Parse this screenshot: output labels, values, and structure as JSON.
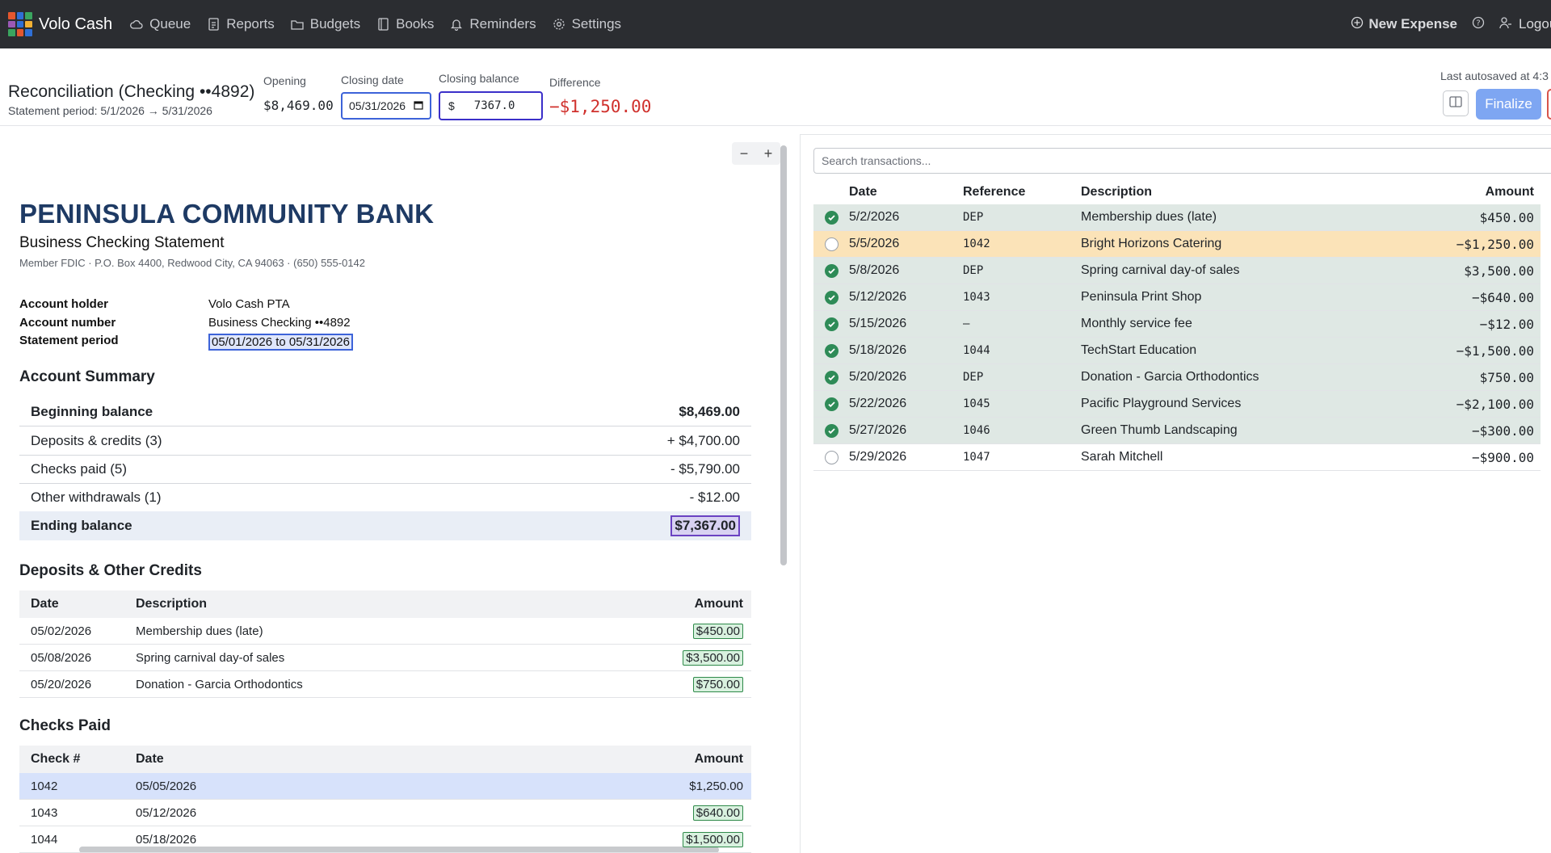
{
  "nav": {
    "brand": "Volo Cash",
    "brand_colors": [
      "#e4572e",
      "#2f6fd6",
      "#3aa55f",
      "#9b59b6",
      "#f2b134"
    ],
    "links": [
      {
        "label": "Queue",
        "icon": "cloud-icon"
      },
      {
        "label": "Reports",
        "icon": "report-icon"
      },
      {
        "label": "Budgets",
        "icon": "folder-icon"
      },
      {
        "label": "Books",
        "icon": "book-icon"
      },
      {
        "label": "Reminders",
        "icon": "bell-icon"
      },
      {
        "label": "Settings",
        "icon": "gear-icon"
      }
    ],
    "new_expense": "New Expense",
    "logout": "Logou"
  },
  "header": {
    "title": "Reconciliation (Checking ••4892)",
    "period": "Statement period: 5/1/2026 → 5/31/2026",
    "opening_label": "Opening",
    "opening_value": "$8,469.00",
    "closing_date_label": "Closing date",
    "closing_date_value": "05/31/2026",
    "closing_balance_label": "Closing balance",
    "closing_balance_currency": "$",
    "closing_balance_value": "7367.0",
    "difference_label": "Difference",
    "difference_value": "−$1,250.00",
    "autosave": "Last autosaved at 4:3",
    "finalize": "Finalize"
  },
  "statement": {
    "bank_name": "PENINSULA COMMUNITY BANK",
    "subtitle": "Business Checking Statement",
    "address": "Member FDIC  ·  P.O. Box 4400, Redwood City, CA 94063  ·  (650) 555-0142",
    "info": [
      {
        "k": "Account holder",
        "v": "Volo Cash PTA"
      },
      {
        "k": "Account number",
        "v": "Business Checking ••4892"
      },
      {
        "k": "Statement period",
        "v": "05/01/2026  to  05/31/2026"
      }
    ],
    "summary_title": "Account Summary",
    "summary": [
      {
        "label": "Beginning balance",
        "value": "$8,469.00"
      },
      {
        "label": "Deposits & credits (3)",
        "value": "+ $4,700.00"
      },
      {
        "label": "Checks paid (5)",
        "value": "- $5,790.00"
      },
      {
        "label": "Other withdrawals (1)",
        "value": "- $12.00"
      },
      {
        "label": "Ending balance",
        "value": "$7,367.00"
      }
    ],
    "deposits_title": "Deposits & Other Credits",
    "deposits_cols": [
      "Date",
      "Description",
      "Amount"
    ],
    "deposits": [
      {
        "date": "05/02/2026",
        "desc": "Membership dues (late)",
        "amount": "$450.00"
      },
      {
        "date": "05/08/2026",
        "desc": "Spring carnival day-of sales",
        "amount": "$3,500.00"
      },
      {
        "date": "05/20/2026",
        "desc": "Donation - Garcia Orthodontics",
        "amount": "$750.00"
      }
    ],
    "checks_title": "Checks Paid",
    "checks_cols": [
      "Check #",
      "Date",
      "Amount"
    ],
    "checks": [
      {
        "num": "1042",
        "date": "05/05/2026",
        "amount": "$1,250.00"
      },
      {
        "num": "1043",
        "date": "05/12/2026",
        "amount": "$640.00"
      },
      {
        "num": "1044",
        "date": "05/18/2026",
        "amount": "$1,500.00"
      }
    ]
  },
  "txns": {
    "search_placeholder": "Search transactions...",
    "cols": [
      "Date",
      "Reference",
      "Description",
      "Amount"
    ],
    "rows": [
      {
        "date": "5/2/2026",
        "ref": "DEP",
        "desc": "Membership dues (late)",
        "amount": "$450.00",
        "matched": true
      },
      {
        "date": "5/5/2026",
        "ref": "1042",
        "desc": "Bright Horizons Catering",
        "amount": "−$1,250.00",
        "matched": false,
        "active": true
      },
      {
        "date": "5/8/2026",
        "ref": "DEP",
        "desc": "Spring carnival day-of sales",
        "amount": "$3,500.00",
        "matched": true
      },
      {
        "date": "5/12/2026",
        "ref": "1043",
        "desc": "Peninsula Print Shop",
        "amount": "−$640.00",
        "matched": true
      },
      {
        "date": "5/15/2026",
        "ref": "—",
        "desc": "Monthly service fee",
        "amount": "−$12.00",
        "matched": true
      },
      {
        "date": "5/18/2026",
        "ref": "1044",
        "desc": "TechStart Education",
        "amount": "−$1,500.00",
        "matched": true
      },
      {
        "date": "5/20/2026",
        "ref": "DEP",
        "desc": "Donation - Garcia Orthodontics",
        "amount": "$750.00",
        "matched": true
      },
      {
        "date": "5/22/2026",
        "ref": "1045",
        "desc": "Pacific Playground Services",
        "amount": "−$2,100.00",
        "matched": true
      },
      {
        "date": "5/27/2026",
        "ref": "1046",
        "desc": "Green Thumb Landscaping",
        "amount": "−$300.00",
        "matched": true
      },
      {
        "date": "5/29/2026",
        "ref": "1047",
        "desc": "Sarah Mitchell",
        "amount": "−$900.00",
        "matched": false
      }
    ]
  },
  "colors": {
    "nav_bg": "#2b2d31",
    "accent": "#3d63d9",
    "difference": "#d0312d",
    "matched_row": "#dfe8e4",
    "active_row": "#fbe3b8",
    "check_green": "#2e8b57",
    "bank_navy": "#1e3a64"
  }
}
